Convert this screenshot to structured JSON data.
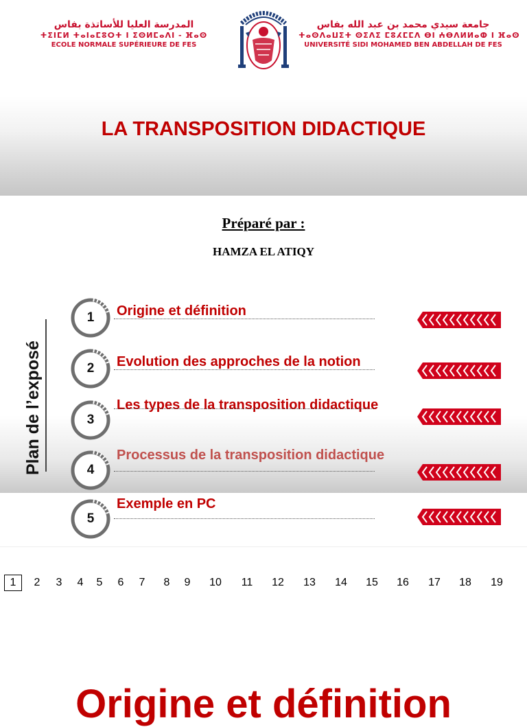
{
  "header": {
    "left": {
      "arabic": "المدرسة العليا للأساتذة بفاس",
      "tifinagh": "ⵜⵉⵏⵎⵍ ⵜⴰⵏⴰⵎⵓⵔⵜ ⵏ ⵉⵙⵍⵎⴰⴷⵏ - ⴼⴰⵙ",
      "french": "ECOLE NORMALE SUPÉRIEURE DE FES"
    },
    "right": {
      "arabic": "جامعة سيدي محمد بن عبد الله بفاس",
      "tifinagh": "ⵜⴰⵙⴷⴰⵡⵉⵜ ⵙⵉⴷⵉ ⵎⵓⵃⵎⵎⴷ ⴱⵏ ⵄⴱⴷⵍⵍⴰⵀ ⵏ ⴼⴰⵙ",
      "french": "UNIVERSITÉ SIDI MOHAMED BEN ABDELLAH DE FES"
    }
  },
  "title": "LA TRANSPOSITION DIDACTIQUE",
  "prepared_label": "Préparé par :",
  "author": "HAMZA EL ATIQY",
  "plan_label": "Plan de l’exposé",
  "items": [
    {
      "num": "1",
      "label": "Origine et définition",
      "color": "#c00000"
    },
    {
      "num": "2",
      "label": "Evolution des approches de la notion",
      "color": "#c00000"
    },
    {
      "num": "3",
      "label": "Les types de la transposition didactique",
      "color": "#c00000"
    },
    {
      "num": "4",
      "label": "Processus de la transposition didactique",
      "color": "#c0504d"
    },
    {
      "num": "5",
      "label": "Exemple en PC",
      "color": "#c00000"
    }
  ],
  "pager": {
    "current": "1",
    "pages": [
      "1",
      "2",
      "3",
      "4",
      "5",
      "6",
      "7",
      "8",
      "9",
      "10",
      "11",
      "12",
      "13",
      "14",
      "15",
      "16",
      "17",
      "18",
      "19"
    ]
  },
  "next_slide_title": "Origine et définition",
  "colors": {
    "accent": "#c00000",
    "header_red": "#c8102e"
  }
}
